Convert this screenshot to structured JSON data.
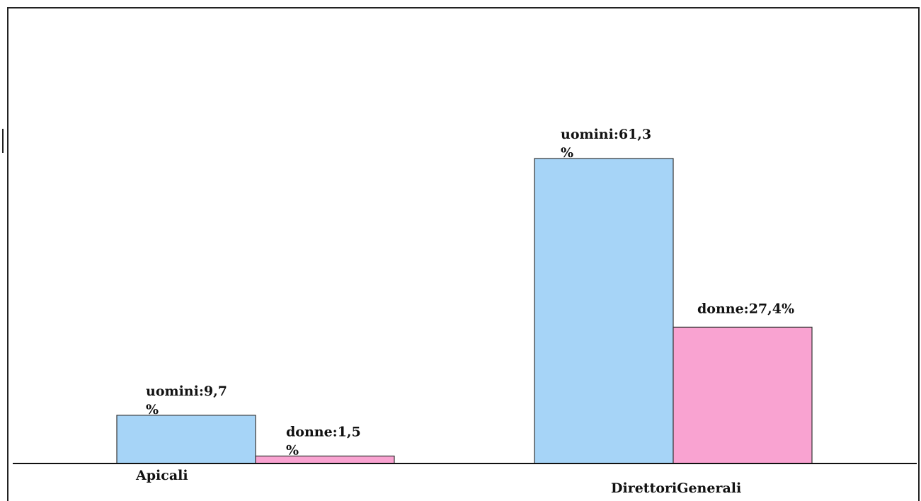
{
  "chart_data": {
    "type": "bar",
    "categories": [
      "Apicali",
      "DirettoriGenerali"
    ],
    "series": [
      {
        "name": "uomini",
        "values": [
          9.7,
          61.3
        ],
        "color": "#a6d4f7",
        "labels": [
          [
            "uomini:9,7",
            "%"
          ],
          [
            "uomini:61,3",
            "%"
          ]
        ]
      },
      {
        "name": "donne",
        "values": [
          1.5,
          27.4
        ],
        "color": "#f9a3d1",
        "labels": [
          [
            "donne:1,5",
            "%"
          ],
          [
            "donne:27,4%"
          ]
        ]
      }
    ],
    "ylim": [
      0,
      100
    ],
    "unit": "%",
    "grid": false,
    "legend": "none",
    "title": "",
    "xlabel": "",
    "ylabel": ""
  }
}
